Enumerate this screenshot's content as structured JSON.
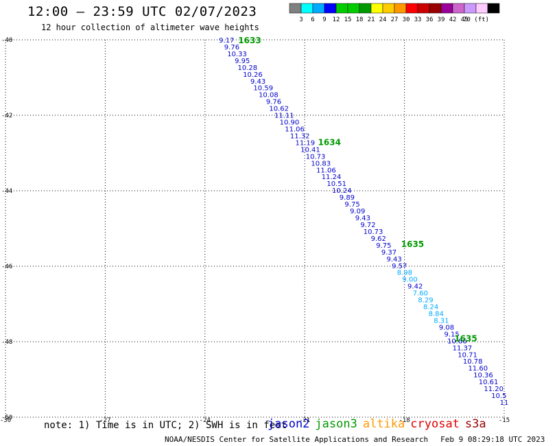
{
  "title": "12:00 – 23:59 UTC 02/07/2023",
  "subtitle": "12 hour collection of altimeter wave heights",
  "note": "note: 1) Time is in UTC; 2) SWH is in feet",
  "footer": {
    "org": "NOAA/NESDIS Center for Satellite Applications and Research",
    "generated": "Feb  9 08:29:18 UTC 2023"
  },
  "satellites": [
    {
      "name": "jason2",
      "color": "#0000cc"
    },
    {
      "name": "jason3",
      "color": "#009900"
    },
    {
      "name": "altika",
      "color": "#ff9900"
    },
    {
      "name": "cryosat",
      "color": "#dd0000"
    },
    {
      "name": "s3a",
      "color": "#990000"
    }
  ],
  "colorbar": {
    "colors": [
      "#808080",
      "#00ffff",
      "#00aaff",
      "#0000ff",
      "#00cc00",
      "#00cc00",
      "#009900",
      "#ffff00",
      "#ffcc00",
      "#ff9900",
      "#ff0000",
      "#cc0000",
      "#990000",
      "#990099",
      "#cc66cc",
      "#cc99ff",
      "#ffccff",
      "#000000"
    ],
    "labels": [
      "3",
      "6",
      "9",
      "12",
      "15",
      "18",
      "21",
      "24",
      "27",
      "30",
      "33",
      "36",
      "39",
      "42",
      "45",
      "70 (ft)"
    ]
  },
  "chart_data": {
    "type": "scatter",
    "x_ticks": [
      "-30",
      "-27",
      "-24",
      "-21",
      "-18",
      "-15"
    ],
    "y_ticks": [
      "-40",
      "-42",
      "-44",
      "-46",
      "-48",
      "-50"
    ],
    "xlim": [
      -30,
      -15
    ],
    "ylim": [
      -50,
      -40
    ],
    "grid": true,
    "time_labels": [
      {
        "text": "1633",
        "lon": -23.0,
        "lat": -40.0,
        "color": "#009900"
      },
      {
        "text": "1634",
        "lon": -20.6,
        "lat": -42.7,
        "color": "#009900"
      },
      {
        "text": "1635",
        "lon": -18.1,
        "lat": -45.4,
        "color": "#009900"
      },
      {
        "text": "1635",
        "lon": -16.5,
        "lat": -47.9,
        "color": "#009900"
      }
    ],
    "series": [
      {
        "color_note": "mixed",
        "start": {
          "lon": -23.35,
          "lat": -40.0
        },
        "end": {
          "lon": -15.0,
          "lat": -49.6
        },
        "values": [
          "9.17",
          "9.76",
          "10.33",
          "9.95",
          "10.28",
          "10.26",
          "9.43",
          "10.59",
          "10.08",
          "9.76",
          "10.62",
          "11.11",
          "10.90",
          "11.06",
          "11.32",
          "11.19",
          "10.41",
          "10.73",
          "10.83",
          "11.06",
          "11.24",
          "10.51",
          "10.24",
          "9.89",
          "9.75",
          "9.09",
          "9.43",
          "9.72",
          "10.73",
          "9.62",
          "9.75",
          "9.37",
          "9.43",
          "9.57",
          "8.98",
          "9.00",
          "9.42",
          "7.60",
          "8.29",
          "8.24",
          "8.84",
          "8.31",
          "9.08",
          "9.15",
          "10.66",
          "11.37",
          "10.71",
          "10.78",
          "11.60",
          "10.36",
          "10.61",
          "11.20",
          "10.5",
          "11"
        ],
        "colors": [
          "#0000cc",
          "#0000cc",
          "#0000cc",
          "#0000cc",
          "#0000cc",
          "#0000cc",
          "#0000cc",
          "#0000cc",
          "#0000cc",
          "#0000cc",
          "#0000cc",
          "#0000cc",
          "#0000cc",
          "#0000cc",
          "#0000cc",
          "#0000cc",
          "#0000cc",
          "#0000cc",
          "#0000cc",
          "#0000cc",
          "#0000cc",
          "#0000cc",
          "#0000cc",
          "#0000cc",
          "#0000cc",
          "#0000cc",
          "#0000cc",
          "#0000cc",
          "#0000cc",
          "#0000cc",
          "#0000cc",
          "#0000cc",
          "#0000cc",
          "#0000cc",
          "#00aaff",
          "#00aaff",
          "#0000cc",
          "#00aaff",
          "#00aaff",
          "#00aaff",
          "#00aaff",
          "#00aaff",
          "#0000cc",
          "#0000cc",
          "#0000cc",
          "#0000cc",
          "#0000cc",
          "#0000cc",
          "#0000cc",
          "#0000cc",
          "#0000cc",
          "#0000cc",
          "#0000cc",
          "#0000cc"
        ]
      }
    ]
  }
}
